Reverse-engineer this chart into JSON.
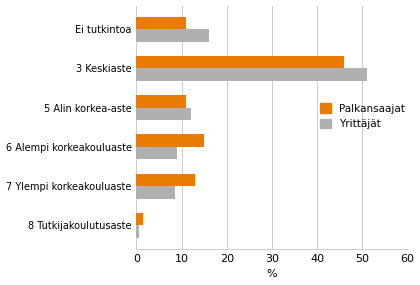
{
  "categories": [
    "Ei tutkintoa",
    "3 Keskiaste",
    "5 Alin korkea-aste",
    "6 Alempi korkeakouluaste",
    "7 Ylempi korkeakouluaste",
    "8 Tutkijakoulutusaste"
  ],
  "palkansaajat": [
    11,
    46,
    11,
    15,
    13,
    1.5
  ],
  "yrittajat": [
    16,
    51,
    12,
    9,
    8.5,
    0.5
  ],
  "color_palkansaajat": "#E87B00",
  "color_yrittajat": "#B0B0B0",
  "xlabel": "%",
  "xlim": [
    0,
    60
  ],
  "xticks": [
    0,
    10,
    20,
    30,
    40,
    50,
    60
  ],
  "legend_palkansaajat": "Palkansaajat",
  "legend_yrittajat": "Yrittäjät",
  "bar_height": 0.32,
  "background_color": "#ffffff",
  "grid_color": "#cccccc"
}
